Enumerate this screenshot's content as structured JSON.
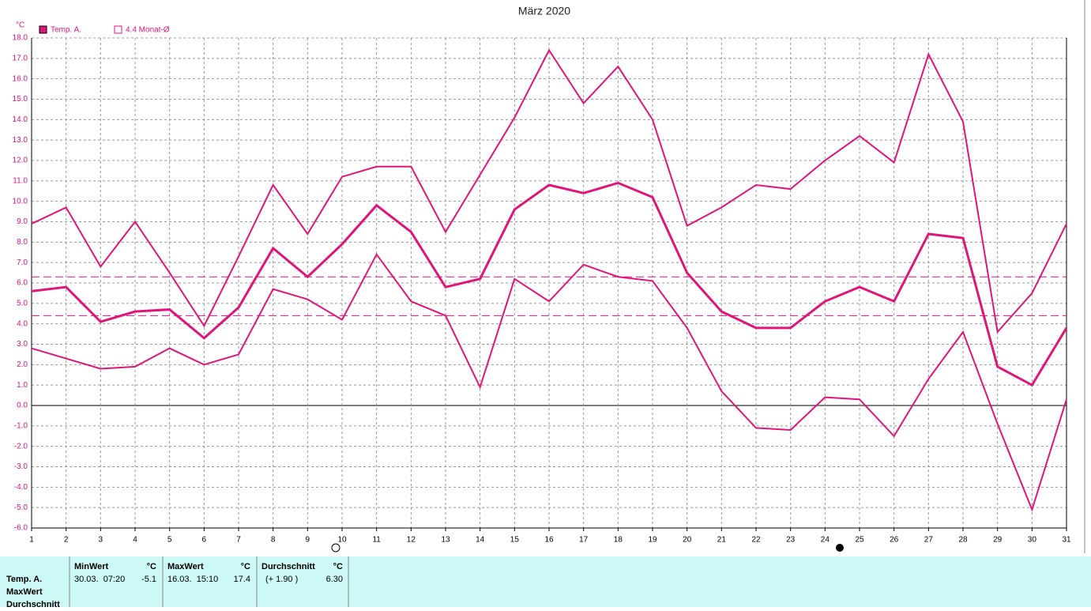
{
  "chart_data": {
    "type": "line",
    "title": "März 2020",
    "y_unit": "°C",
    "x": [
      1,
      2,
      3,
      4,
      5,
      6,
      7,
      8,
      9,
      10,
      11,
      12,
      13,
      14,
      15,
      16,
      17,
      18,
      19,
      20,
      21,
      22,
      23,
      24,
      25,
      26,
      27,
      28,
      29,
      30,
      31
    ],
    "series": [
      {
        "name": "Temp. A.",
        "color": "#e0157a",
        "width": 3,
        "values": [
          5.6,
          5.8,
          4.1,
          4.6,
          4.7,
          3.3,
          4.8,
          7.7,
          6.3,
          7.9,
          9.8,
          8.5,
          5.8,
          6.2,
          9.6,
          10.8,
          10.4,
          10.9,
          10.2,
          6.5,
          4.6,
          3.8,
          3.8,
          5.1,
          5.8,
          5.1,
          8.4,
          8.2,
          1.9,
          1.0,
          3.8
        ]
      },
      {
        "color": "#e0157a",
        "width": 2,
        "values": [
          8.9,
          9.7,
          6.8,
          9.0,
          6.5,
          3.9,
          7.3,
          10.8,
          8.4,
          11.2,
          11.7,
          11.7,
          8.5,
          11.3,
          14.1,
          17.4,
          14.8,
          16.6,
          14.0,
          8.8,
          9.7,
          10.8,
          10.6,
          12.0,
          13.2,
          11.9,
          17.2,
          13.9,
          3.6,
          5.5,
          8.9
        ]
      },
      {
        "color": "#e0157a",
        "width": 2,
        "values": [
          2.8,
          2.3,
          1.8,
          1.9,
          2.8,
          2.0,
          2.5,
          5.7,
          5.2,
          4.2,
          7.4,
          5.1,
          4.4,
          0.9,
          6.2,
          5.1,
          6.9,
          6.3,
          6.1,
          3.8,
          0.7,
          -1.1,
          -1.2,
          0.4,
          0.3,
          -1.5,
          1.3,
          3.6,
          -0.9,
          -5.1,
          0.3
        ]
      }
    ],
    "hlines": [
      {
        "value": 6.3,
        "color": "#e0157a"
      },
      {
        "value": 4.4,
        "name": "4.4 Monat-Ø",
        "color": "#e0157a"
      }
    ],
    "xlim": [
      1,
      31
    ],
    "xticks": [
      1,
      2,
      3,
      4,
      5,
      6,
      7,
      8,
      9,
      10,
      11,
      12,
      13,
      14,
      15,
      16,
      17,
      18,
      19,
      20,
      21,
      22,
      23,
      24,
      25,
      26,
      27,
      28,
      29,
      30,
      31
    ],
    "ylim": [
      -6,
      18
    ],
    "yticks": [
      {
        "value": 18,
        "label": "18.0"
      },
      {
        "value": 17,
        "label": "17.0"
      },
      {
        "value": 16,
        "label": "16.0"
      },
      {
        "value": 15,
        "label": "15.0"
      },
      {
        "value": 14,
        "label": "14.0"
      },
      {
        "value": 13,
        "label": "13.0"
      },
      {
        "value": 12,
        "label": "12.0"
      },
      {
        "value": 11,
        "label": "11.0"
      },
      {
        "value": 10,
        "label": "10.0"
      },
      {
        "value": 9,
        "label": "9.0"
      },
      {
        "value": 8,
        "label": "8.0"
      },
      {
        "value": 7,
        "label": "7.0"
      },
      {
        "value": 6,
        "label": "6.0"
      },
      {
        "value": 5,
        "label": "5.0"
      },
      {
        "value": 4,
        "label": "4.0"
      },
      {
        "value": 3,
        "label": "3.0"
      },
      {
        "value": 2,
        "label": "2.0"
      },
      {
        "value": 1,
        "label": "1.0"
      },
      {
        "value": 0,
        "label": "0.0"
      },
      {
        "value": -1,
        "label": "-1.0"
      },
      {
        "value": -2,
        "label": "-2.0"
      },
      {
        "value": -3,
        "label": "-3.0"
      },
      {
        "value": -4,
        "label": "-4.0"
      },
      {
        "value": -5,
        "label": "-5.0"
      },
      {
        "value": -6,
        "label": "-6.0"
      }
    ],
    "grid": true,
    "zero_line": true
  },
  "stats_table": {
    "row_labels": [
      "Temp. A.",
      "MaxWert",
      "Durchschnitt"
    ],
    "columns": [
      {
        "header": "MinWert",
        "unit": "°C",
        "when": "30.03.  07:20",
        "value": "-5.1"
      },
      {
        "header": "MaxWert",
        "unit": "°C",
        "when": "16.03.  15:10",
        "value": "17.4"
      },
      {
        "header": "Durchschnitt",
        "unit": "°C",
        "when": "(+ 1.90 )",
        "value": "6.30"
      }
    ]
  }
}
